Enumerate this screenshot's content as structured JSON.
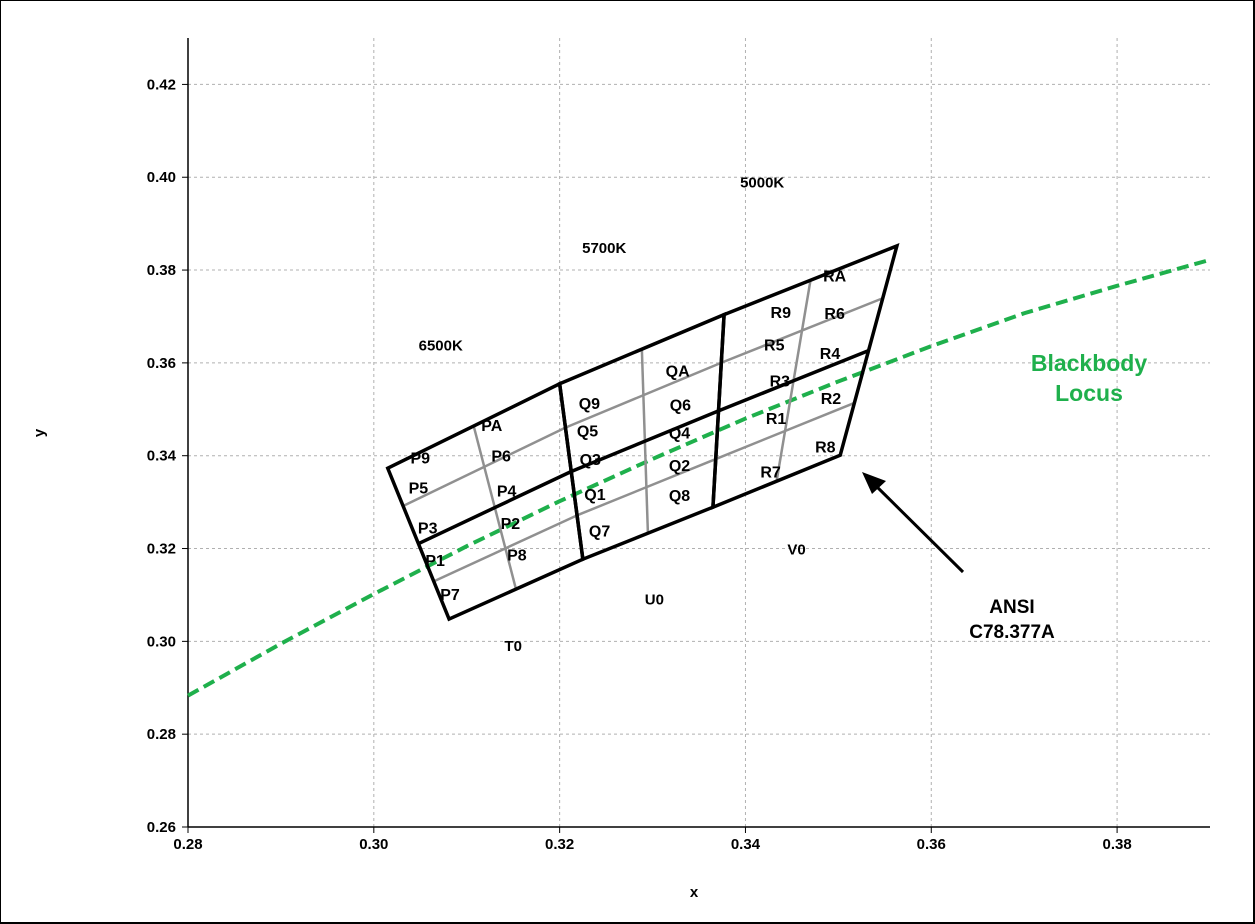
{
  "chart_data": {
    "type": "scatter",
    "xlabel": "x",
    "ylabel": "y",
    "xlim": [
      0.28,
      0.39
    ],
    "ylim": [
      0.26,
      0.43
    ],
    "x_ticks": [
      "0.28",
      "0.30",
      "0.32",
      "0.34",
      "0.36",
      "0.38"
    ],
    "y_ticks": [
      "0.26",
      "0.28",
      "0.30",
      "0.32",
      "0.34",
      "0.36",
      "0.38",
      "0.40",
      "0.42"
    ],
    "grid": true,
    "colors": {
      "locus": "#1fb04c",
      "grid": "#b0b0b0",
      "outline": "#000000",
      "subdivision": "#909090"
    },
    "blackbody_locus": {
      "label_line1": "Blackbody",
      "label_line2": "Locus",
      "points": [
        [
          0.28,
          0.2883
        ],
        [
          0.29,
          0.2995
        ],
        [
          0.3,
          0.3102
        ],
        [
          0.31,
          0.3205
        ],
        [
          0.32,
          0.3302
        ],
        [
          0.33,
          0.3393
        ],
        [
          0.34,
          0.348
        ],
        [
          0.35,
          0.356
        ],
        [
          0.36,
          0.3636
        ],
        [
          0.37,
          0.3707
        ],
        [
          0.38,
          0.3766
        ],
        [
          0.39,
          0.3822
        ]
      ]
    },
    "quadrangles": [
      {
        "name": "6500K",
        "corners": [
          [
            0.3015,
            0.3373
          ],
          [
            0.32,
            0.3555
          ],
          [
            0.3225,
            0.3177
          ],
          [
            0.3081,
            0.3048
          ]
        ]
      },
      {
        "name": "5700K",
        "corners": [
          [
            0.32,
            0.3555
          ],
          [
            0.3377,
            0.3704
          ],
          [
            0.3365,
            0.3289
          ],
          [
            0.3225,
            0.3177
          ]
        ]
      },
      {
        "name": "5000K",
        "corners": [
          [
            0.3377,
            0.3704
          ],
          [
            0.3563,
            0.3852
          ],
          [
            0.3502,
            0.3401
          ],
          [
            0.3365,
            0.3289
          ]
        ]
      }
    ],
    "bins": [
      "PA",
      "P9",
      "P6",
      "P5",
      "P4",
      "P3",
      "P2",
      "P1",
      "P8",
      "P7",
      "QA",
      "Q9",
      "Q6",
      "Q5",
      "Q4",
      "Q3",
      "Q2",
      "Q1",
      "Q8",
      "Q7",
      "RA",
      "R9",
      "R6",
      "R5",
      "R4",
      "R3",
      "R2",
      "R1",
      "R8",
      "R7"
    ],
    "bin_positions": [
      [
        0.3127,
        0.3466
      ],
      [
        0.305,
        0.3396
      ],
      [
        0.3137,
        0.34
      ],
      [
        0.3048,
        0.3332
      ],
      [
        0.3143,
        0.3325
      ],
      [
        0.3058,
        0.3245
      ],
      [
        0.3147,
        0.3255
      ],
      [
        0.3066,
        0.3175
      ],
      [
        0.3154,
        0.3187
      ],
      [
        0.3082,
        0.3102
      ],
      [
        0.3327,
        0.3584
      ],
      [
        0.3232,
        0.3514
      ],
      [
        0.333,
        0.351
      ],
      [
        0.323,
        0.3454
      ],
      [
        0.3329,
        0.345
      ],
      [
        0.3233,
        0.3393
      ],
      [
        0.3329,
        0.338
      ],
      [
        0.3238,
        0.3318
      ],
      [
        0.3329,
        0.3315
      ],
      [
        0.3243,
        0.3239
      ],
      [
        0.3496,
        0.3788
      ],
      [
        0.3438,
        0.371
      ],
      [
        0.3496,
        0.3708
      ],
      [
        0.3431,
        0.364
      ],
      [
        0.3491,
        0.3621
      ],
      [
        0.3437,
        0.3562
      ],
      [
        0.3492,
        0.3524
      ],
      [
        0.3433,
        0.3481
      ],
      [
        0.3486,
        0.342
      ],
      [
        0.3427,
        0.3366
      ]
    ],
    "region_labels": {
      "k6500": "6500K",
      "k5700": "5700K",
      "k5000": "5000K",
      "t0": "T0",
      "u0": "U0",
      "v0": "V0"
    },
    "region_positions": {
      "k6500": [
        0.3072,
        0.3637
      ],
      "k5700": [
        0.3248,
        0.3848
      ],
      "k5000": [
        0.3418,
        0.3989
      ],
      "t0": [
        0.315,
        0.299
      ],
      "u0": [
        0.3302,
        0.309
      ],
      "v0": [
        0.3455,
        0.3198
      ]
    },
    "annotation": {
      "line1": "ANSI",
      "line2": "C78.377A"
    }
  }
}
